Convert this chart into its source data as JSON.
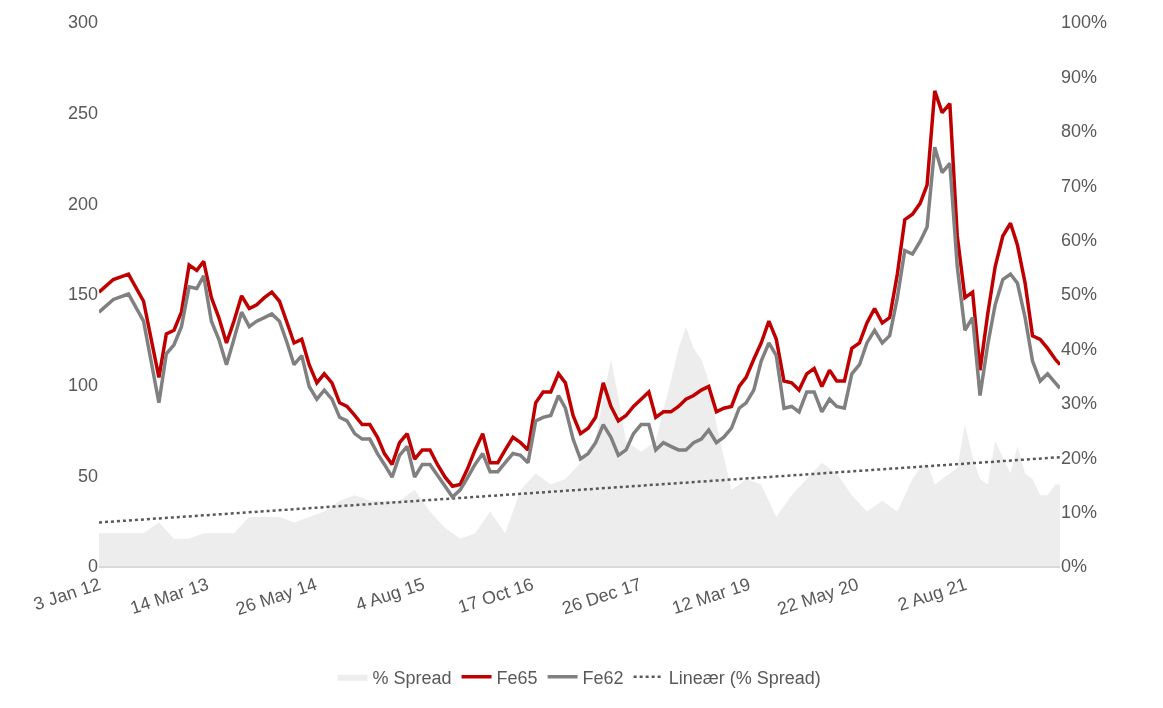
{
  "chart_data": {
    "type": "line",
    "x": [
      "2012-01-03",
      "2012-03",
      "2012-05",
      "2012-07",
      "2012-09",
      "2012-10",
      "2012-11",
      "2012-12",
      "2013-01",
      "2013-02",
      "2013-03",
      "2013-04",
      "2013-05",
      "2013-06",
      "2013-07",
      "2013-08",
      "2013-09",
      "2013-10",
      "2013-11",
      "2013-12",
      "2014-01",
      "2014-02",
      "2014-03",
      "2014-04",
      "2014-05",
      "2014-06",
      "2014-07",
      "2014-08",
      "2014-09",
      "2014-10",
      "2014-11",
      "2014-12",
      "2015-01",
      "2015-02",
      "2015-03",
      "2015-04",
      "2015-05",
      "2015-06",
      "2015-07",
      "2015-08",
      "2015-09",
      "2015-10",
      "2015-11",
      "2015-12",
      "2016-01",
      "2016-02",
      "2016-03",
      "2016-04",
      "2016-05",
      "2016-06",
      "2016-07",
      "2016-08",
      "2016-09",
      "2016-10",
      "2016-11",
      "2016-12",
      "2017-01",
      "2017-02",
      "2017-03",
      "2017-04",
      "2017-05",
      "2017-06",
      "2017-07",
      "2017-08",
      "2017-09",
      "2017-10",
      "2017-11",
      "2017-12",
      "2018-01",
      "2018-02",
      "2018-03",
      "2018-04",
      "2018-05",
      "2018-06",
      "2018-07",
      "2018-08",
      "2018-09",
      "2018-10",
      "2018-11",
      "2018-12",
      "2019-01",
      "2019-02",
      "2019-03",
      "2019-04",
      "2019-05",
      "2019-06",
      "2019-07",
      "2019-08",
      "2019-09",
      "2019-10",
      "2019-11",
      "2019-12",
      "2020-01",
      "2020-02",
      "2020-03",
      "2020-04",
      "2020-05",
      "2020-06",
      "2020-07",
      "2020-08",
      "2020-09",
      "2020-10",
      "2020-11",
      "2020-12",
      "2021-01",
      "2021-02",
      "2021-03",
      "2021-04",
      "2021-05",
      "2021-06",
      "2021-07",
      "2021-08",
      "2021-09",
      "2021-10",
      "2021-11",
      "2021-12",
      "2022-01",
      "2022-02",
      "2022-03",
      "2022-04",
      "2022-05",
      "2022-06",
      "2022-07",
      "2022-08",
      "2022-08-20"
    ],
    "series": [
      {
        "name": "% Spread",
        "type": "area",
        "axis": "y2",
        "color": "#ededed",
        "x": [
          "2012-01-03",
          "2012-03",
          "2012-05",
          "2012-07",
          "2012-09",
          "2012-11",
          "2013-01",
          "2013-03",
          "2013-05",
          "2013-07",
          "2013-09",
          "2013-11",
          "2014-01",
          "2014-03",
          "2014-05",
          "2014-07",
          "2014-09",
          "2014-11",
          "2015-01",
          "2015-03",
          "2015-05",
          "2015-07",
          "2015-09",
          "2015-11",
          "2016-01",
          "2016-03",
          "2016-05",
          "2016-07",
          "2016-09",
          "2016-11",
          "2017-01",
          "2017-03",
          "2017-05",
          "2017-07",
          "2017-08",
          "2017-09",
          "2017-10",
          "2017-11",
          "2018-01",
          "2018-03",
          "2018-05",
          "2018-06",
          "2018-07",
          "2018-08",
          "2018-09",
          "2018-10",
          "2018-11",
          "2018-12",
          "2019-01",
          "2019-02",
          "2019-03",
          "2019-05",
          "2019-07",
          "2019-09",
          "2019-11",
          "2020-01",
          "2020-03",
          "2020-05",
          "2020-07",
          "2020-09",
          "2020-11",
          "2021-01",
          "2021-02",
          "2021-03",
          "2021-04",
          "2021-05",
          "2021-06",
          "2021-07",
          "2021-08",
          "2021-09",
          "2021-10",
          "2021-11",
          "2021-12",
          "2022-01",
          "2022-02",
          "2022-03",
          "2022-04",
          "2022-05",
          "2022-06",
          "2022-07",
          "2022-08",
          "2022-08-20"
        ],
        "values": [
          6,
          6,
          6,
          6,
          8,
          5,
          5,
          6,
          6,
          6,
          9,
          9,
          9,
          8,
          9,
          10,
          12,
          13,
          12,
          12,
          12,
          14,
          10,
          7,
          5,
          6,
          10,
          6,
          14,
          17,
          15,
          16,
          19,
          23,
          31,
          38,
          31,
          23,
          21,
          23,
          34,
          40,
          44,
          40,
          38,
          34,
          26,
          20,
          14,
          15,
          16,
          15,
          9,
          13,
          16,
          19,
          17,
          13,
          10,
          12,
          10,
          16,
          18,
          19,
          15,
          16,
          17,
          18,
          26,
          20,
          16,
          15,
          23,
          20,
          17,
          22,
          17,
          16,
          13,
          13,
          15,
          15
        ]
      },
      {
        "name": "Fe65",
        "color": "#c00000",
        "values": [
          151,
          158,
          161,
          146,
          104,
          128,
          130,
          140,
          166,
          163,
          168,
          148,
          137,
          123,
          135,
          149,
          142,
          144,
          148,
          151,
          146,
          134,
          123,
          125,
          111,
          101,
          106,
          101,
          90,
          88,
          83,
          78,
          78,
          71,
          62,
          56,
          68,
          73,
          59,
          64,
          64,
          56,
          49,
          44,
          45,
          54,
          64,
          73,
          57,
          57,
          64,
          71,
          68,
          64,
          90,
          96,
          96,
          106,
          101,
          83,
          73,
          76,
          82,
          101,
          88,
          80,
          83,
          88,
          92,
          96,
          82,
          85,
          85,
          88,
          92,
          94,
          97,
          99,
          85,
          87,
          88,
          99,
          104,
          114,
          123,
          135,
          125,
          102,
          101,
          97,
          106,
          109,
          99,
          108,
          102,
          102,
          120,
          123,
          134,
          142,
          134,
          137,
          161,
          191,
          194,
          200,
          210,
          262,
          250,
          255,
          182,
          148,
          151,
          108,
          139,
          165,
          182,
          189,
          177,
          156,
          127,
          125,
          120,
          114,
          111
        ]
      },
      {
        "name": "Fe62",
        "color": "#808080",
        "values": [
          140,
          147,
          150,
          135,
          90,
          117,
          122,
          132,
          154,
          153,
          160,
          135,
          125,
          111,
          125,
          140,
          132,
          135,
          137,
          139,
          135,
          123,
          111,
          116,
          99,
          92,
          97,
          92,
          82,
          80,
          73,
          70,
          70,
          62,
          56,
          49,
          61,
          66,
          49,
          56,
          56,
          50,
          44,
          38,
          42,
          49,
          56,
          62,
          52,
          52,
          57,
          62,
          61,
          57,
          80,
          82,
          83,
          94,
          87,
          70,
          59,
          62,
          68,
          78,
          71,
          61,
          64,
          73,
          78,
          78,
          64,
          68,
          66,
          64,
          64,
          68,
          70,
          75,
          68,
          71,
          76,
          87,
          90,
          97,
          113,
          123,
          116,
          87,
          88,
          85,
          96,
          96,
          85,
          92,
          88,
          87,
          106,
          111,
          123,
          130,
          123,
          127,
          148,
          174,
          172,
          179,
          187,
          231,
          217,
          222,
          165,
          130,
          137,
          94,
          122,
          144,
          158,
          161,
          156,
          137,
          113,
          102,
          106,
          101,
          98
        ]
      },
      {
        "name": "Lineær (% Spread)",
        "type": "line",
        "axis": "y2",
        "color": "#595959",
        "line_style": "dotted",
        "x": [
          "2012-01-03",
          "2022-08-20"
        ],
        "values": [
          8,
          20
        ]
      }
    ],
    "xlim": [
      "2012-01-03",
      "2022-08-20"
    ],
    "xticks": [
      {
        "value": "2012-01-03",
        "label": "3 Jan 12"
      },
      {
        "value": "2013-03-14",
        "label": "14 Mar 13"
      },
      {
        "value": "2014-05-26",
        "label": "26 May 14"
      },
      {
        "value": "2015-08-04",
        "label": "4 Aug 15"
      },
      {
        "value": "2016-10-17",
        "label": "17 Oct 16"
      },
      {
        "value": "2017-12-26",
        "label": "26 Dec 17"
      },
      {
        "value": "2019-03-12",
        "label": "12 Mar 19"
      },
      {
        "value": "2020-05-22",
        "label": "22 May 20"
      },
      {
        "value": "2021-08-02",
        "label": "2 Aug 21"
      }
    ],
    "ylim": [
      0,
      300
    ],
    "yticks": [
      0,
      50,
      100,
      150,
      200,
      250,
      300
    ],
    "y2lim": [
      0,
      100
    ],
    "y2ticks": [
      {
        "value": 0,
        "label": "0%"
      },
      {
        "value": 10,
        "label": "10%"
      },
      {
        "value": 20,
        "label": "20%"
      },
      {
        "value": 30,
        "label": "30%"
      },
      {
        "value": 40,
        "label": "40%"
      },
      {
        "value": 50,
        "label": "50%"
      },
      {
        "value": 60,
        "label": "60%"
      },
      {
        "value": 70,
        "label": "70%"
      },
      {
        "value": 80,
        "label": "80%"
      },
      {
        "value": 90,
        "label": "90%"
      },
      {
        "value": 100,
        "label": "100%"
      }
    ],
    "legend": "bottom"
  }
}
